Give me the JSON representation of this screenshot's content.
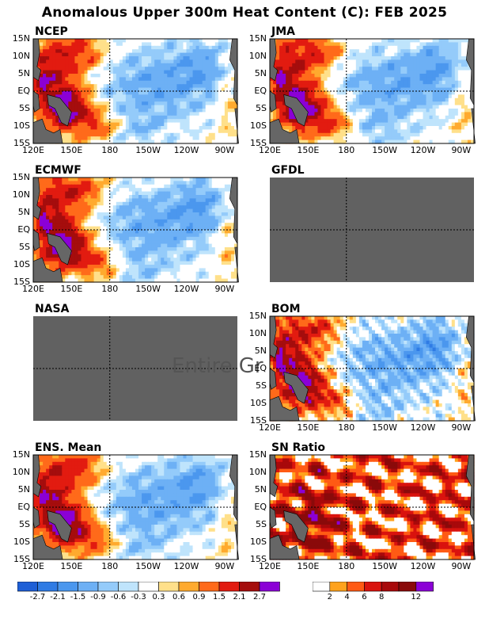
{
  "title": "Anomalous Upper 300m Heat Content (C): FEB 2025",
  "lat_labels": [
    "15N",
    "10N",
    "5N",
    "EQ",
    "5S",
    "10S",
    "15S"
  ],
  "lon_labels": [
    "120E",
    "150E",
    "180",
    "150W",
    "120W",
    "90W"
  ],
  "panels": [
    {
      "name": "NCEP",
      "status": "data",
      "axes": true
    },
    {
      "name": "JMA",
      "status": "data",
      "axes": true
    },
    {
      "name": "ECMWF",
      "status": "data",
      "axes": true
    },
    {
      "name": "GFDL",
      "status": "missing",
      "axes": false
    },
    {
      "name": "NASA",
      "status": "missing",
      "axes": false,
      "message": "Entire Gr"
    },
    {
      "name": "BOM",
      "status": "data",
      "axes": true
    },
    {
      "name": "ENS. Mean",
      "status": "data",
      "axes": true
    },
    {
      "name": "SN Ratio",
      "status": "data",
      "axes": true
    }
  ],
  "colorbars": {
    "anomaly": {
      "labels": [
        "-2.7",
        "-2.1",
        "-1.5",
        "-0.9",
        "-0.6",
        "-0.3",
        "0.3",
        "0.6",
        "0.9",
        "1.5",
        "2.1",
        "2.7"
      ],
      "colors": [
        "#1e5fd6",
        "#2f7be4",
        "#4b97ee",
        "#6db0f5",
        "#94cbfa",
        "#bfe4fc",
        "#ffffff",
        "#ffe08a",
        "#ffaa2e",
        "#ff6a1a",
        "#e21b10",
        "#a50d0d",
        "#8b00d6"
      ]
    },
    "sn_ratio": {
      "labels": [
        "2",
        "4",
        "6",
        "8",
        "12"
      ],
      "colors": [
        "#ffffff",
        "#ffa21c",
        "#ff5a14",
        "#d9130e",
        "#a8090b",
        "#8a0a0a",
        "#8b00d6"
      ]
    }
  },
  "chart_data": {
    "type": "heatmap",
    "title": "Anomalous Upper 300m Heat Content (C): FEB 2025",
    "variable": "upper 300m heat content anomaly",
    "units": "C",
    "month": "FEB 2025",
    "lon_range": [
      "120E",
      "80W"
    ],
    "lat_range": [
      "15S",
      "15N"
    ],
    "grid": "dashed lines at EQ and 180",
    "anomaly_levels": [
      -2.7,
      -2.1,
      -1.5,
      -0.9,
      -0.6,
      -0.3,
      0.3,
      0.6,
      0.9,
      1.5,
      2.1,
      2.7
    ],
    "sn_levels": [
      2,
      4,
      6,
      8,
      12
    ],
    "panels": [
      "NCEP",
      "JMA",
      "ECMWF",
      "GFDL",
      "NASA",
      "BOM",
      "ENS. Mean",
      "SN Ratio"
    ],
    "missing_panels": [
      "GFDL",
      "NASA"
    ],
    "pattern": "warm anomalies (0.9 to >2.7) in western Pacific, strongest ~5S 150E; cool anomalies (-0.3 to -1.5) over central-eastern equatorial Pacific 180-100W"
  }
}
